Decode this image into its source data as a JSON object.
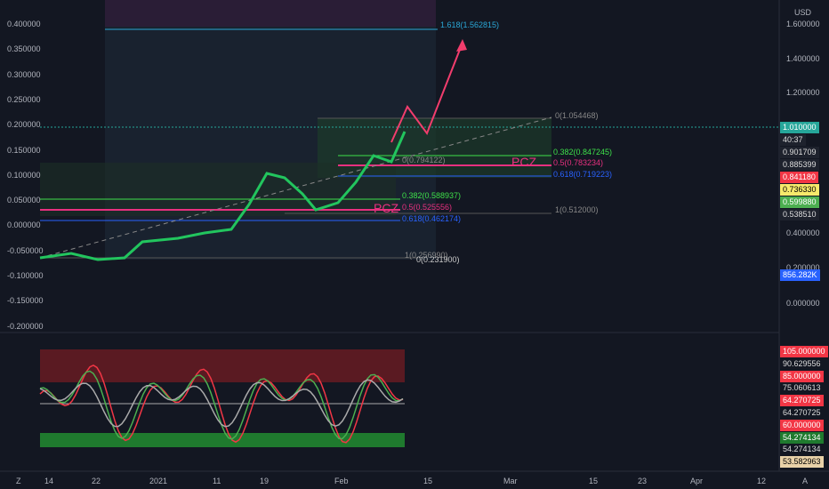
{
  "left_axis": [
    "0.400000",
    "0.350000",
    "0.300000",
    "0.250000",
    "0.200000",
    "0.150000",
    "0.100000",
    "0.050000",
    "0.000000",
    "-0.050000",
    "-0.100000",
    "-0.150000",
    "-0.200000"
  ],
  "right_axis": {
    "currency": "USD",
    "labels": [
      "1.600000",
      "1.400000",
      "1.200000",
      "0.400000",
      "0.200000",
      "0.000000"
    ]
  },
  "price_tags": [
    "1.010000",
    "40:37",
    "0.901709",
    "0.885399",
    "0.841180",
    "0.736330",
    "0.599880",
    "0.538510",
    "856.282K"
  ],
  "oscillator_tags": [
    "105.000000",
    "90.629556",
    "85.000000",
    "75.060613",
    "64.270725",
    "64.270725",
    "60.000000",
    "54.274134",
    "54.274134",
    "53.582963"
  ],
  "x_axis": [
    "14",
    "22",
    "2021",
    "11",
    "19",
    "Feb",
    "15",
    "Mar",
    "15",
    "23",
    "Apr",
    "12"
  ],
  "fib_labels": [
    "1.618(1.562815)",
    "0(1.054468)",
    "0.382(0.847245)",
    "0.5(0.783234)",
    "0.618(0.719223)",
    "0(0.794122)",
    "0.382(0.588937)",
    "0.5(0.525556)",
    "0.618(0.462174)",
    "1(0.512000)",
    "1(0.256990)",
    "0(0.231900)"
  ],
  "annotations": [
    "PCZ",
    "PCZ"
  ],
  "corner_buttons": [
    "Z",
    "A"
  ]
}
